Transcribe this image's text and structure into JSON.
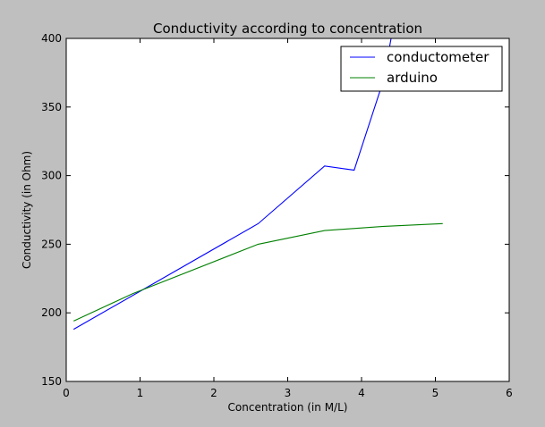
{
  "chart_data": {
    "type": "line",
    "title": "Conductivity according to concentration",
    "xlabel": "Concentration (in M/L)",
    "ylabel": "Conductivity (in Ohm)",
    "xlim": [
      0,
      6
    ],
    "ylim": [
      150,
      400
    ],
    "xticks": [
      0,
      1,
      2,
      3,
      4,
      5,
      6
    ],
    "yticks": [
      150,
      200,
      250,
      300,
      350,
      400
    ],
    "grid": false,
    "legend_position": "top-right",
    "series": [
      {
        "name": "conductometer",
        "color": "#0000ff",
        "x": [
          0.1,
          2.6,
          3.5,
          3.9,
          4.3,
          4.4
        ],
        "y": [
          188,
          265,
          307,
          304,
          370,
          400
        ]
      },
      {
        "name": "arduino",
        "color": "#008000",
        "x": [
          0.1,
          0.9,
          2.6,
          3.5,
          4.3,
          5.1
        ],
        "y": [
          194,
          214,
          250,
          260,
          263,
          265
        ]
      }
    ]
  }
}
